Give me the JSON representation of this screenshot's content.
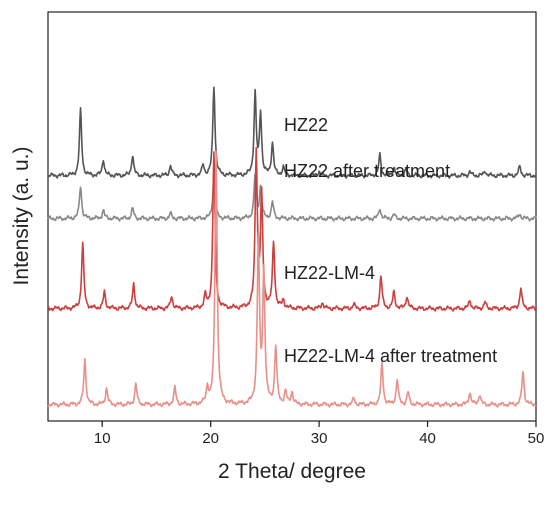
{
  "chart_data": {
    "type": "line",
    "xlabel": "2 Theta/ degree",
    "ylabel": "Intensity (a. u.)",
    "xlim": [
      5,
      50
    ],
    "x_ticks": [
      10,
      20,
      30,
      40,
      50
    ],
    "y_ticks_labeled": false,
    "grid": false,
    "legend": "none",
    "series": [
      {
        "name": "HZ22",
        "color": "#555555",
        "baseline": 0.6,
        "peaks": [
          [
            8.0,
            0.16
          ],
          [
            10.1,
            0.04
          ],
          [
            12.8,
            0.05
          ],
          [
            16.3,
            0.025
          ],
          [
            19.3,
            0.025
          ],
          [
            20.3,
            0.22
          ],
          [
            24.1,
            0.2
          ],
          [
            24.6,
            0.15
          ],
          [
            25.7,
            0.08
          ],
          [
            26.7,
            0.02
          ],
          [
            30.0,
            0.01
          ],
          [
            35.6,
            0.05
          ],
          [
            36.9,
            0.02
          ],
          [
            38.0,
            0.015
          ],
          [
            43.9,
            0.01
          ],
          [
            45.3,
            0.012
          ],
          [
            48.5,
            0.022
          ]
        ]
      },
      {
        "name": "HZ22 after treatment",
        "color": "#8a8a8a",
        "baseline": 0.495,
        "peaks": [
          [
            8.0,
            0.08
          ],
          [
            10.1,
            0.02
          ],
          [
            12.8,
            0.025
          ],
          [
            16.3,
            0.012
          ],
          [
            20.3,
            0.11
          ],
          [
            24.1,
            0.105
          ],
          [
            24.6,
            0.075
          ],
          [
            25.7,
            0.04
          ],
          [
            35.6,
            0.025
          ],
          [
            36.9,
            0.01
          ],
          [
            48.5,
            0.012
          ]
        ]
      },
      {
        "name": "HZ22-LM-4",
        "color": "#cc3f3f",
        "baseline": 0.275,
        "peaks": [
          [
            8.2,
            0.16
          ],
          [
            10.2,
            0.04
          ],
          [
            12.9,
            0.06
          ],
          [
            16.4,
            0.03
          ],
          [
            19.5,
            0.03
          ],
          [
            20.3,
            0.38
          ],
          [
            24.2,
            0.38
          ],
          [
            24.7,
            0.27
          ],
          [
            25.8,
            0.16
          ],
          [
            26.7,
            0.02
          ],
          [
            30.3,
            0.015
          ],
          [
            33.2,
            0.01
          ],
          [
            35.7,
            0.08
          ],
          [
            36.9,
            0.04
          ],
          [
            38.1,
            0.03
          ],
          [
            43.9,
            0.02
          ],
          [
            45.3,
            0.015
          ],
          [
            48.6,
            0.05
          ]
        ]
      },
      {
        "name": "HZ22-LM-4 after treatment",
        "color": "#e8908a",
        "baseline": 0.04,
        "peaks": [
          [
            8.4,
            0.11
          ],
          [
            10.4,
            0.04
          ],
          [
            13.1,
            0.05
          ],
          [
            16.7,
            0.04
          ],
          [
            19.7,
            0.04
          ],
          [
            20.5,
            0.62
          ],
          [
            24.4,
            0.4
          ],
          [
            24.9,
            0.32
          ],
          [
            26.0,
            0.14
          ],
          [
            26.9,
            0.03
          ],
          [
            27.5,
            0.03
          ],
          [
            33.2,
            0.015
          ],
          [
            35.8,
            0.1
          ],
          [
            37.2,
            0.06
          ],
          [
            38.2,
            0.03
          ],
          [
            43.9,
            0.03
          ],
          [
            44.8,
            0.025
          ],
          [
            48.8,
            0.08
          ]
        ]
      }
    ]
  }
}
